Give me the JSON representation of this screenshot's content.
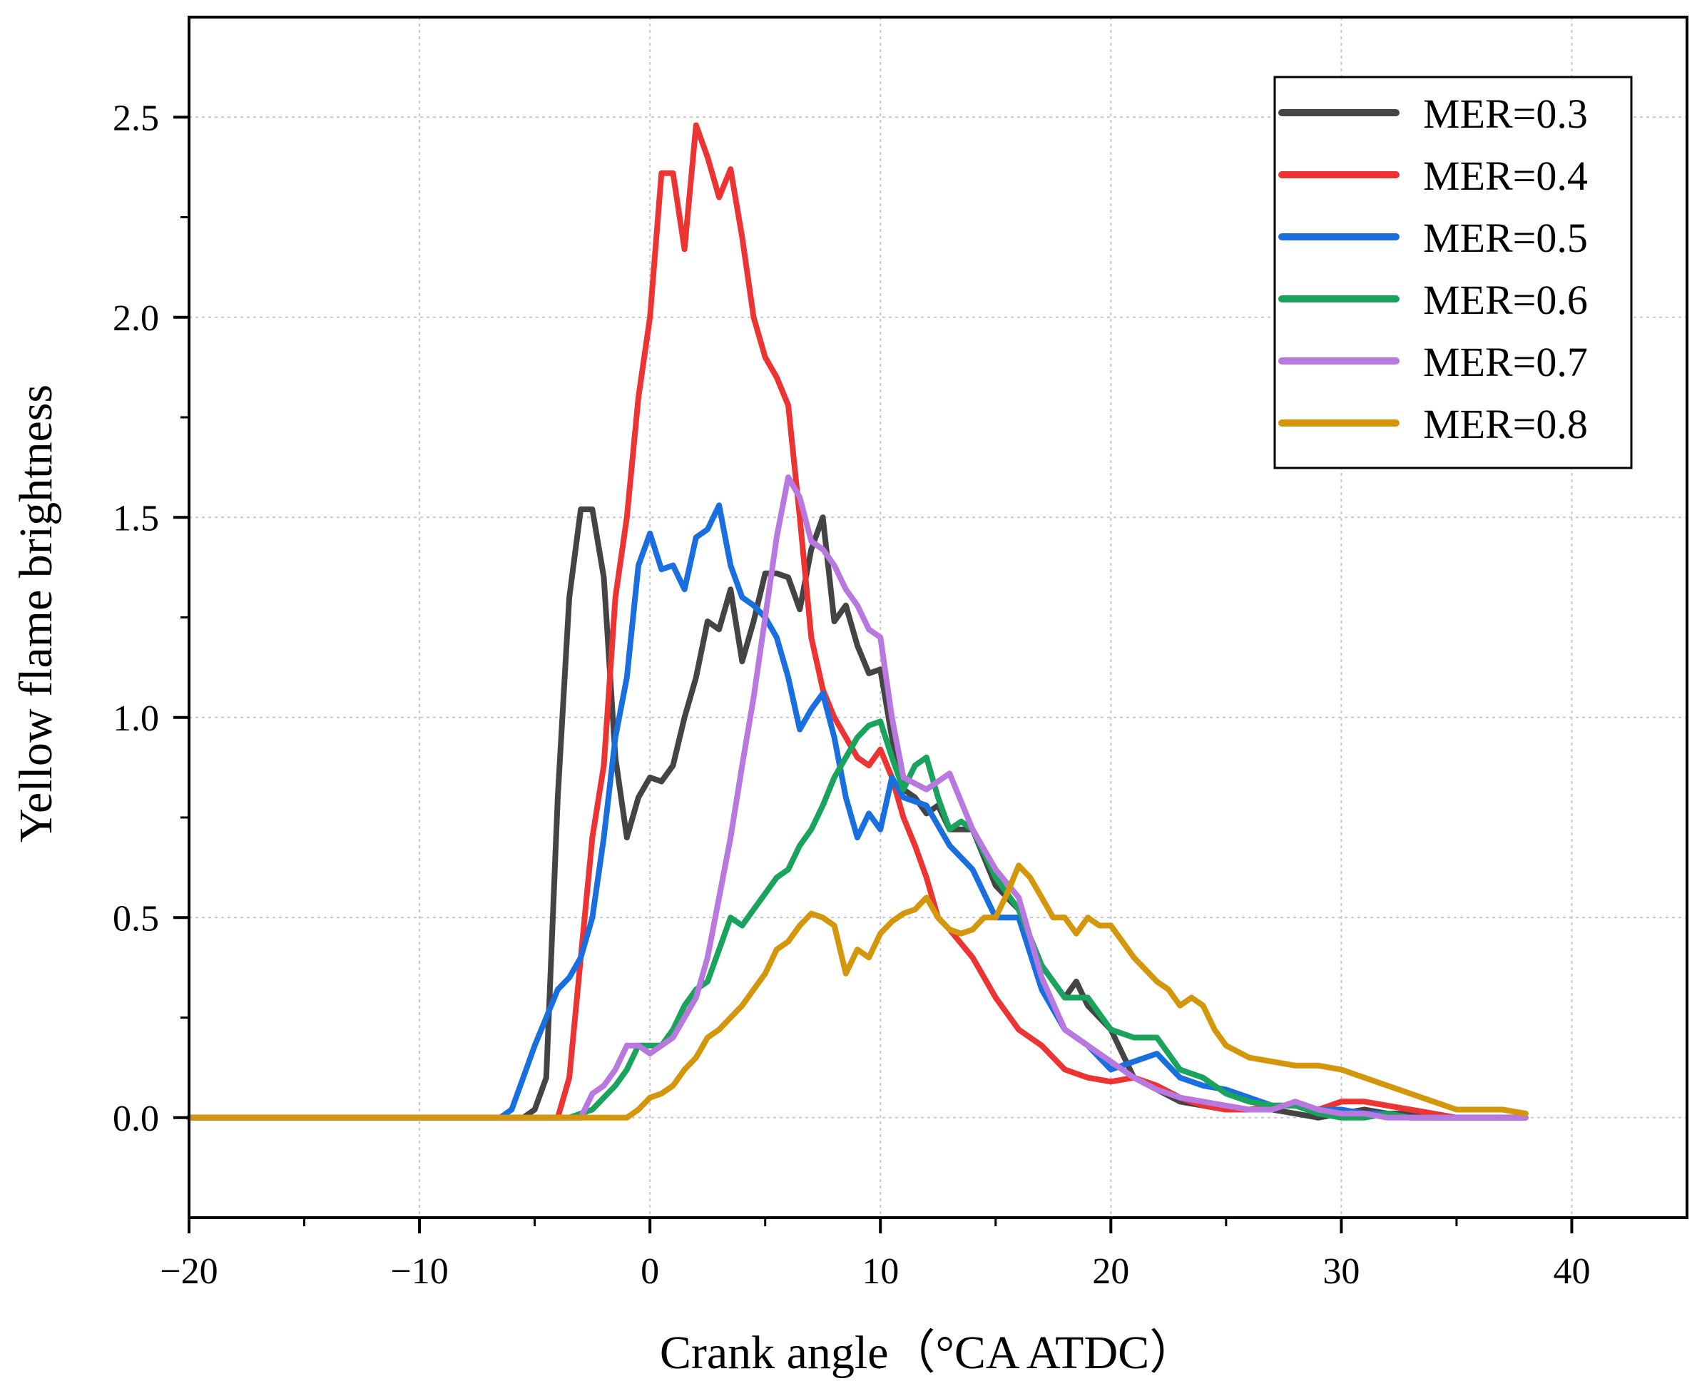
{
  "chart_data": {
    "type": "line",
    "xlabel": "Crank angle（°CA ATDC）",
    "ylabel": "Yellow flame brightness",
    "xlim": [
      -20,
      45
    ],
    "ylim": [
      -0.25,
      2.75
    ],
    "xticks": [
      -20,
      -10,
      0,
      10,
      20,
      30,
      40
    ],
    "xtick_labels": [
      "−20",
      "−10",
      "0",
      "10",
      "20",
      "30",
      "40"
    ],
    "yticks": [
      0.0,
      0.5,
      1.0,
      1.5,
      2.0,
      2.5
    ],
    "ytick_labels": [
      "0.0",
      "0.5",
      "1.0",
      "1.5",
      "2.0",
      "2.5"
    ],
    "grid": true,
    "legend_position": "top-right",
    "series": [
      {
        "name": "MER=0.3",
        "color": "#444444",
        "x": [
          -20,
          -5.5,
          -5,
          -4.5,
          -4,
          -3.5,
          -3,
          -2.5,
          -2,
          -1.5,
          -1,
          -0.5,
          0,
          0.5,
          1,
          1.5,
          2,
          2.5,
          3,
          3.5,
          4,
          4.5,
          5,
          5.5,
          6,
          6.5,
          7,
          7.5,
          8,
          8.5,
          9,
          9.5,
          10,
          10.5,
          11,
          11.5,
          12,
          12.5,
          13,
          14,
          15,
          16,
          17,
          18,
          18.5,
          19,
          20,
          21,
          22,
          23,
          24,
          25,
          26,
          27,
          28,
          29,
          30,
          31,
          32,
          33,
          34,
          35,
          36,
          37,
          38
        ],
        "y": [
          0,
          0,
          0.02,
          0.1,
          0.8,
          1.3,
          1.52,
          1.52,
          1.35,
          0.9,
          0.7,
          0.8,
          0.85,
          0.84,
          0.88,
          1.0,
          1.1,
          1.24,
          1.22,
          1.32,
          1.14,
          1.24,
          1.36,
          1.36,
          1.35,
          1.27,
          1.42,
          1.5,
          1.24,
          1.28,
          1.18,
          1.11,
          1.12,
          0.95,
          0.82,
          0.8,
          0.76,
          0.78,
          0.72,
          0.72,
          0.58,
          0.52,
          0.38,
          0.3,
          0.34,
          0.28,
          0.22,
          0.1,
          0.07,
          0.04,
          0.03,
          0.02,
          0.02,
          0.02,
          0.01,
          0.0,
          0.01,
          0.02,
          0.01,
          0.01,
          0,
          0,
          0,
          0,
          0
        ]
      },
      {
        "name": "MER=0.4",
        "color": "#ee3333",
        "x": [
          -20,
          -4,
          -3.5,
          -3,
          -2.5,
          -2,
          -1.5,
          -1,
          -0.5,
          0,
          0.5,
          1,
          1.5,
          2,
          2.5,
          3,
          3.5,
          4,
          4.5,
          5,
          5.5,
          6,
          6.5,
          7,
          7.5,
          8,
          8.5,
          9,
          9.5,
          10,
          10.5,
          11,
          11.5,
          12,
          12.5,
          13,
          14,
          15,
          16,
          17,
          18,
          19,
          20,
          21,
          22,
          23,
          24,
          25,
          26,
          27,
          28,
          29,
          30,
          31,
          32,
          33,
          34,
          35,
          36,
          37,
          38
        ],
        "y": [
          0,
          0,
          0.1,
          0.4,
          0.7,
          0.88,
          1.3,
          1.5,
          1.8,
          2.0,
          2.36,
          2.36,
          2.17,
          2.48,
          2.4,
          2.3,
          2.37,
          2.2,
          2.0,
          1.9,
          1.85,
          1.78,
          1.5,
          1.2,
          1.07,
          1.0,
          0.95,
          0.9,
          0.88,
          0.92,
          0.85,
          0.75,
          0.68,
          0.6,
          0.5,
          0.47,
          0.4,
          0.3,
          0.22,
          0.18,
          0.12,
          0.1,
          0.09,
          0.1,
          0.08,
          0.05,
          0.03,
          0.02,
          0.02,
          0.03,
          0.03,
          0.02,
          0.04,
          0.04,
          0.03,
          0.02,
          0.01,
          0,
          0,
          0,
          0
        ]
      },
      {
        "name": "MER=0.5",
        "color": "#1a6fe0",
        "x": [
          -20,
          -6.5,
          -6,
          -5.5,
          -5,
          -4.5,
          -4,
          -3.5,
          -3,
          -2.5,
          -2,
          -1.5,
          -1,
          -0.5,
          0,
          0.5,
          1,
          1.5,
          2,
          2.5,
          3,
          3.5,
          4,
          4.5,
          5,
          5.5,
          6,
          6.5,
          7,
          7.5,
          8,
          8.5,
          9,
          9.5,
          10,
          10.5,
          11,
          12,
          13,
          14,
          15,
          16,
          17,
          18,
          19,
          20,
          21,
          22,
          23,
          24,
          25,
          26,
          27,
          28,
          29,
          30,
          31,
          32,
          33,
          34,
          35,
          36,
          37,
          38
        ],
        "y": [
          0,
          0,
          0.02,
          0.1,
          0.18,
          0.25,
          0.32,
          0.35,
          0.4,
          0.5,
          0.7,
          0.95,
          1.1,
          1.38,
          1.46,
          1.37,
          1.38,
          1.32,
          1.45,
          1.47,
          1.53,
          1.38,
          1.3,
          1.28,
          1.25,
          1.2,
          1.1,
          0.97,
          1.02,
          1.06,
          0.95,
          0.8,
          0.7,
          0.76,
          0.72,
          0.85,
          0.8,
          0.78,
          0.68,
          0.62,
          0.5,
          0.5,
          0.32,
          0.22,
          0.18,
          0.12,
          0.14,
          0.16,
          0.1,
          0.08,
          0.07,
          0.05,
          0.03,
          0.03,
          0.02,
          0.02,
          0.01,
          0.01,
          0,
          0,
          0,
          0,
          0,
          0
        ]
      },
      {
        "name": "MER=0.6",
        "color": "#1aa35c",
        "x": [
          -20,
          -3.5,
          -3,
          -2.5,
          -2,
          -1.5,
          -1,
          -0.5,
          0,
          0.5,
          1,
          1.5,
          2,
          2.5,
          3,
          3.5,
          4,
          4.5,
          5,
          5.5,
          6,
          6.5,
          7,
          7.5,
          8,
          8.5,
          9,
          9.5,
          10,
          10.5,
          11,
          11.5,
          12,
          12.5,
          13,
          13.5,
          14,
          15,
          16,
          17,
          18,
          19,
          20,
          21,
          22,
          23,
          24,
          25,
          26,
          27,
          28,
          29,
          30,
          31,
          32,
          33,
          34,
          35,
          36,
          37,
          38
        ],
        "y": [
          0,
          0,
          0.01,
          0.02,
          0.05,
          0.08,
          0.12,
          0.18,
          0.18,
          0.18,
          0.22,
          0.28,
          0.32,
          0.34,
          0.42,
          0.5,
          0.48,
          0.52,
          0.56,
          0.6,
          0.62,
          0.68,
          0.72,
          0.78,
          0.85,
          0.9,
          0.95,
          0.98,
          0.99,
          0.9,
          0.82,
          0.88,
          0.9,
          0.8,
          0.72,
          0.74,
          0.72,
          0.6,
          0.52,
          0.38,
          0.3,
          0.3,
          0.22,
          0.2,
          0.2,
          0.12,
          0.1,
          0.06,
          0.04,
          0.03,
          0.03,
          0.01,
          0.0,
          0.0,
          0.01,
          0.0,
          0,
          0,
          0,
          0,
          0
        ]
      },
      {
        "name": "MER=0.7",
        "color": "#b978e0",
        "x": [
          -20,
          -3,
          -2.5,
          -2,
          -1.5,
          -1,
          -0.5,
          0,
          0.5,
          1,
          1.5,
          2,
          2.5,
          3,
          3.5,
          4,
          4.5,
          5,
          5.5,
          6,
          6.5,
          7,
          7.5,
          8,
          8.5,
          9,
          9.5,
          10,
          10.5,
          11,
          12,
          13,
          14,
          15,
          16,
          17,
          18,
          19,
          20,
          21,
          22,
          23,
          24,
          25,
          26,
          27,
          28,
          29,
          30,
          31,
          32,
          33,
          34,
          35,
          36,
          37,
          38
        ],
        "y": [
          0,
          0,
          0.06,
          0.08,
          0.12,
          0.18,
          0.18,
          0.16,
          0.18,
          0.2,
          0.25,
          0.3,
          0.4,
          0.55,
          0.7,
          0.88,
          1.05,
          1.25,
          1.45,
          1.6,
          1.55,
          1.44,
          1.42,
          1.38,
          1.32,
          1.28,
          1.22,
          1.2,
          1.0,
          0.85,
          0.82,
          0.86,
          0.72,
          0.62,
          0.55,
          0.35,
          0.22,
          0.18,
          0.14,
          0.1,
          0.07,
          0.05,
          0.04,
          0.03,
          0.02,
          0.02,
          0.04,
          0.02,
          0.01,
          0.01,
          0,
          0,
          0,
          0,
          0,
          0,
          0
        ]
      },
      {
        "name": "MER=0.8",
        "color": "#d4960a",
        "x": [
          -20,
          -1,
          -0.5,
          0,
          0.5,
          1,
          1.5,
          2,
          2.5,
          3,
          3.5,
          4,
          4.5,
          5,
          5.5,
          6,
          6.5,
          7,
          7.5,
          8,
          8.5,
          9,
          9.5,
          10,
          10.5,
          11,
          11.5,
          12,
          12.5,
          13,
          13.5,
          14,
          14.5,
          15,
          15.5,
          16,
          16.5,
          17,
          17.5,
          18,
          18.5,
          19,
          19.5,
          20,
          20.5,
          21,
          21.5,
          22,
          22.5,
          23,
          23.5,
          24,
          24.5,
          25,
          26,
          27,
          28,
          29,
          30,
          31,
          32,
          33,
          34,
          35,
          36,
          37,
          38
        ],
        "y": [
          0,
          0,
          0.02,
          0.05,
          0.06,
          0.08,
          0.12,
          0.15,
          0.2,
          0.22,
          0.25,
          0.28,
          0.32,
          0.36,
          0.42,
          0.44,
          0.48,
          0.51,
          0.5,
          0.48,
          0.36,
          0.42,
          0.4,
          0.46,
          0.49,
          0.51,
          0.52,
          0.55,
          0.5,
          0.47,
          0.46,
          0.47,
          0.5,
          0.5,
          0.56,
          0.63,
          0.6,
          0.55,
          0.5,
          0.5,
          0.46,
          0.5,
          0.48,
          0.48,
          0.44,
          0.4,
          0.37,
          0.34,
          0.32,
          0.28,
          0.3,
          0.28,
          0.22,
          0.18,
          0.15,
          0.14,
          0.13,
          0.13,
          0.12,
          0.1,
          0.08,
          0.06,
          0.04,
          0.02,
          0.02,
          0.02,
          0.01
        ]
      }
    ]
  }
}
